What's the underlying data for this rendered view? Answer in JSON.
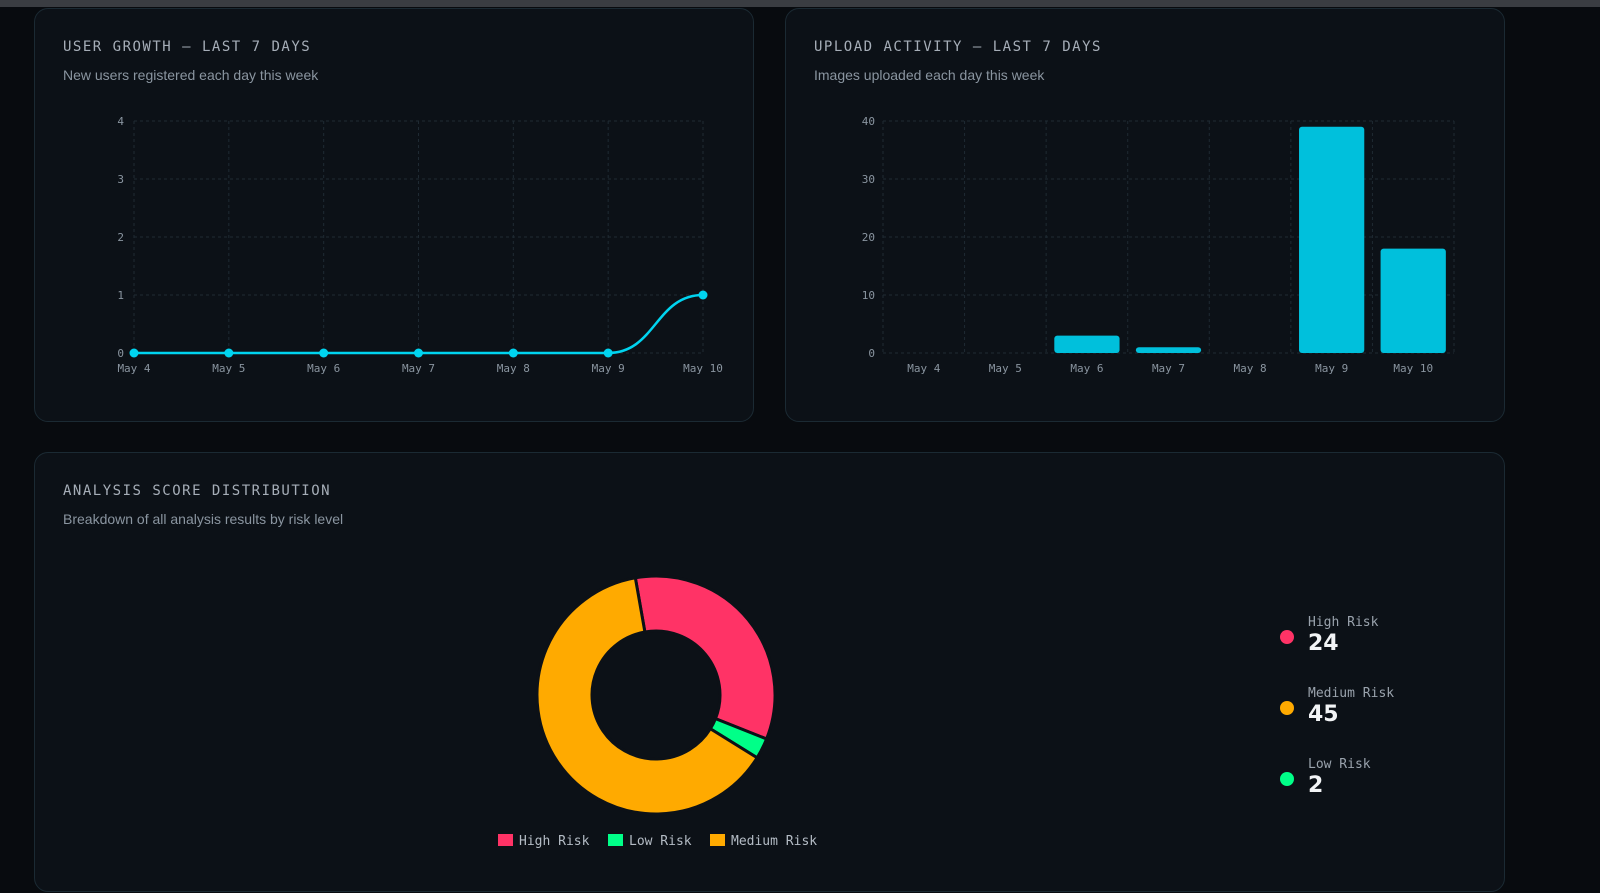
{
  "user_growth": {
    "title": "USER GROWTH — LAST 7 DAYS",
    "subtitle": "New users registered each day this week"
  },
  "upload_activity": {
    "title": "UPLOAD ACTIVITY — LAST 7 DAYS",
    "subtitle": "Images uploaded each day this week"
  },
  "score_distribution": {
    "title": "ANALYSIS SCORE DISTRIBUTION",
    "subtitle": "Breakdown of all analysis results by risk level",
    "summary": [
      {
        "label": "High Risk",
        "value": "24",
        "color": "#ff3366"
      },
      {
        "label": "Medium Risk",
        "value": "45",
        "color": "#ffaa00"
      },
      {
        "label": "Low Risk",
        "value": "2",
        "color": "#00ff88"
      }
    ]
  },
  "chart_data": [
    {
      "type": "line",
      "title": "USER GROWTH — LAST 7 DAYS",
      "categories": [
        "May 4",
        "May 5",
        "May 6",
        "May 7",
        "May 8",
        "May 9",
        "May 10"
      ],
      "values": [
        0,
        0,
        0,
        0,
        0,
        0,
        1
      ],
      "ylim": [
        0,
        4
      ],
      "yticks": [
        "0",
        "1",
        "2",
        "3",
        "4"
      ],
      "grid": true,
      "color": "#00d4f0"
    },
    {
      "type": "bar",
      "title": "UPLOAD ACTIVITY — LAST 7 DAYS",
      "categories": [
        "May 4",
        "May 5",
        "May 6",
        "May 7",
        "May 8",
        "May 9",
        "May 10"
      ],
      "values": [
        0,
        0,
        3,
        1,
        0,
        39,
        18
      ],
      "ylim": [
        0,
        40
      ],
      "yticks": [
        "0",
        "10",
        "20",
        "30",
        "40"
      ],
      "grid": true,
      "color": "#00c0dc"
    },
    {
      "type": "pie",
      "title": "ANALYSIS SCORE DISTRIBUTION",
      "legend_position": "bottom",
      "slices": [
        {
          "label": "High Risk",
          "value": 24,
          "color": "#ff3366"
        },
        {
          "label": "Low Risk",
          "value": 2,
          "color": "#00ff88"
        },
        {
          "label": "Medium Risk",
          "value": 45,
          "color": "#ffaa00"
        }
      ]
    }
  ]
}
